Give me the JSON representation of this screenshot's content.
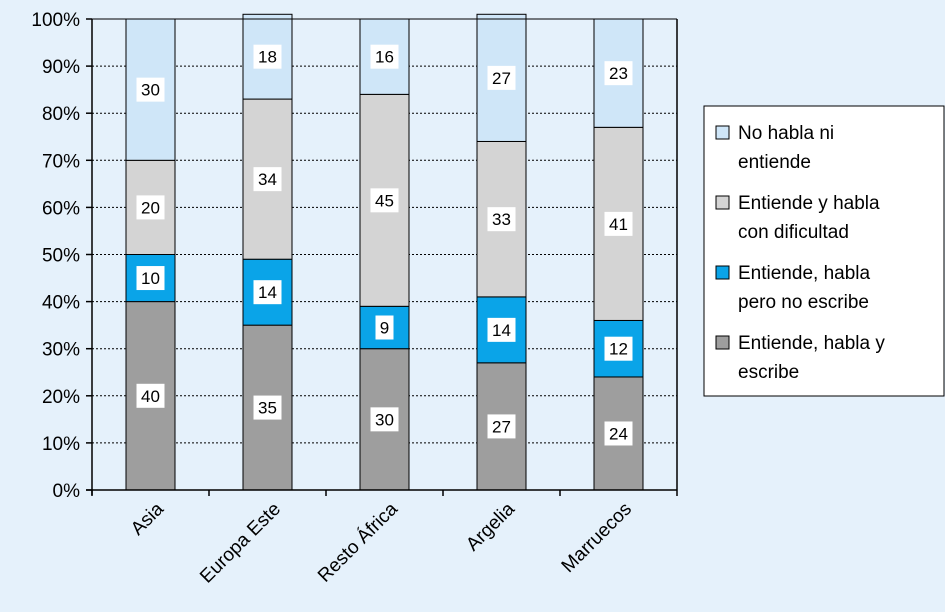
{
  "chart_data": {
    "type": "bar",
    "stacked": true,
    "categories": [
      "Asia",
      "Europa Este",
      "Resto África",
      "Argelia",
      "Marruecos"
    ],
    "ylim": [
      0,
      100
    ],
    "yticks": [
      "0%",
      "10%",
      "20%",
      "30%",
      "40%",
      "50%",
      "60%",
      "70%",
      "80%",
      "90%",
      "100%"
    ],
    "grid": true,
    "legend_position": "right",
    "series": [
      {
        "name": "Entiende, habla y escribe",
        "legend_lines": [
          "Entiende, habla y",
          "escribe"
        ],
        "color": "#9e9e9e",
        "values": [
          40,
          35,
          30,
          27,
          24
        ],
        "labels": [
          "40",
          "35",
          "30",
          "27",
          "24"
        ]
      },
      {
        "name": "Entiende, habla pero no escribe",
        "legend_lines": [
          "Entiende, habla",
          "pero no escribe"
        ],
        "color": "#0aa4e8",
        "values": [
          10,
          14,
          9,
          14,
          12
        ],
        "labels": [
          "10",
          "14",
          "9",
          "14",
          "12"
        ]
      },
      {
        "name": "Entiende y habla con dificultad",
        "legend_lines": [
          "Entiende y habla",
          "con dificultad"
        ],
        "color": "#d4d4d4",
        "values": [
          20,
          34,
          45,
          33,
          41
        ],
        "labels": [
          "20",
          "34",
          "45",
          "33",
          "41"
        ]
      },
      {
        "name": "No habla ni entiende",
        "legend_lines": [
          "No habla ni",
          "entiende"
        ],
        "color": "#cfe6f8",
        "values": [
          30,
          18,
          16,
          27,
          23
        ],
        "labels": [
          "30",
          "18",
          "16",
          "27",
          "23"
        ]
      }
    ]
  }
}
